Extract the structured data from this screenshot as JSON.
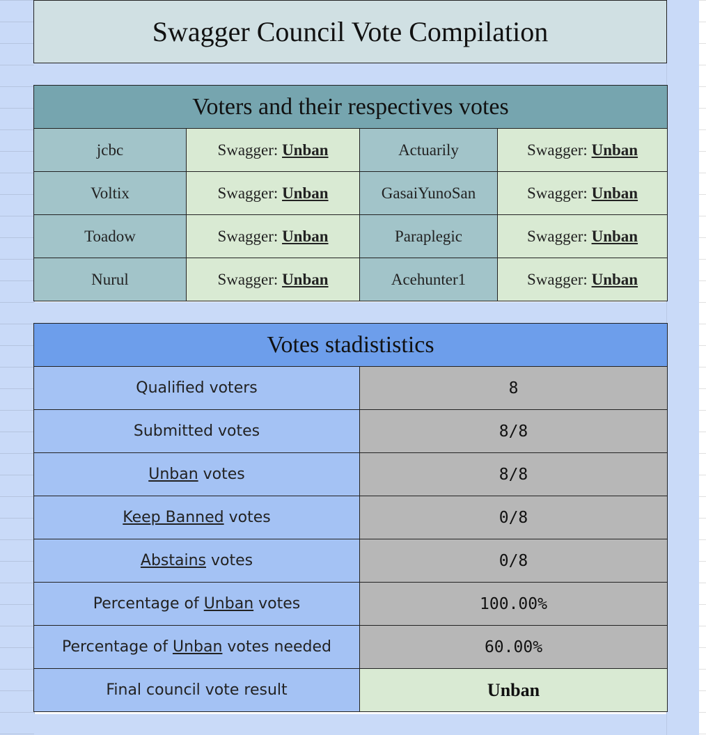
{
  "title": "Swagger Council Vote Compilation",
  "voters_section": {
    "header": "Voters and their respectives votes",
    "vote_prefix": "Swagger: ",
    "rows": [
      [
        {
          "name": "jcbc",
          "vote": "Unban"
        },
        {
          "name": "Actuarily",
          "vote": "Unban"
        }
      ],
      [
        {
          "name": "Voltix",
          "vote": "Unban"
        },
        {
          "name": "GasaiYunoSan",
          "vote": "Unban"
        }
      ],
      [
        {
          "name": "Toadow",
          "vote": "Unban"
        },
        {
          "name": "Paraplegic",
          "vote": "Unban"
        }
      ],
      [
        {
          "name": "Nurul",
          "vote": "Unban"
        },
        {
          "name": "Acehunter1",
          "vote": "Unban"
        }
      ]
    ]
  },
  "stats_section": {
    "header": "Votes stadististics",
    "rows": [
      {
        "pre": "Qualified voters",
        "em": "",
        "post": "",
        "value": "8"
      },
      {
        "pre": "Submitted votes",
        "em": "",
        "post": "",
        "value": "8/8"
      },
      {
        "pre": "",
        "em": "Unban",
        "post": " votes",
        "value": "8/8"
      },
      {
        "pre": "",
        "em": "Keep Banned",
        "post": " votes",
        "value": "0/8"
      },
      {
        "pre": "",
        "em": "Abstains",
        "post": " votes",
        "value": "0/8"
      },
      {
        "pre": "Percentage of ",
        "em": "Unban",
        "post": " votes",
        "value": "100.00%"
      },
      {
        "pre": "Percentage of ",
        "em": "Unban",
        "post": " votes needed",
        "value": "60.00%"
      },
      {
        "pre": "Final council vote result",
        "em": "",
        "post": "",
        "value": "Unban",
        "final": true
      }
    ]
  },
  "colors": {
    "background": "#c9daf8",
    "title_bg": "#d0e0e3",
    "voters_header": "#76a5af",
    "voter_name_bg": "#a2c4c9",
    "vote_bg": "#d9ead3",
    "stats_header": "#6d9eeb",
    "stats_label_bg": "#a4c2f4",
    "stats_value_bg": "#b7b7b7"
  }
}
